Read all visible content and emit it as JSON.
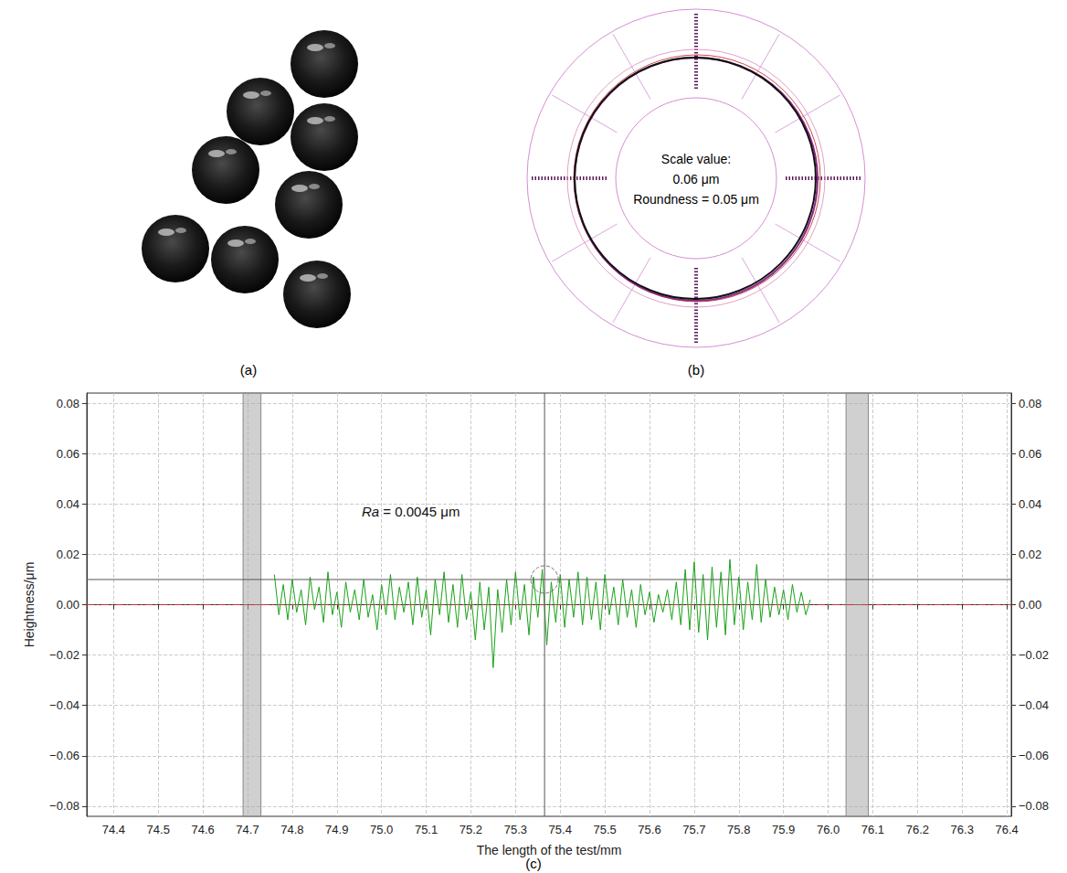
{
  "panels": {
    "a": {
      "label": "(a)"
    },
    "b": {
      "label": "(b)",
      "lines": [
        "Scale value:",
        "0.06 μm",
        "Roundness = 0.05 μm"
      ]
    }
  },
  "chart_data": {
    "type": "line",
    "label": "(c)",
    "annotation": "Ra = 0.0045 μm",
    "x_label": "The length of the test/mm",
    "y_label": "Heightness/μm",
    "color": "#19a319",
    "grid": true,
    "xlim": [
      74.34,
      76.41
    ],
    "xticks": [
      74.4,
      74.5,
      74.6,
      74.7,
      74.8,
      74.9,
      {
        "value": 75,
        "label": "75.0"
      },
      75.1,
      75.2,
      75.3,
      75.4,
      75.5,
      75.6,
      75.7,
      75.8,
      75.9,
      {
        "value": 76,
        "label": "76.0"
      },
      76.1,
      76.2,
      76.3,
      76.4
    ],
    "ylim": [
      -0.084,
      0.084
    ],
    "yticks": [
      {
        "value": -0.08,
        "label": "−0.08"
      },
      {
        "value": -0.06,
        "label": "−0.06"
      },
      {
        "value": -0.04,
        "label": "−0.04"
      },
      {
        "value": -0.02,
        "label": "−0.02"
      },
      {
        "value": 0,
        "label": "0.00"
      },
      0.02,
      0.04,
      0.06,
      0.08
    ],
    "y2lim": [
      -0.084,
      0.084
    ],
    "y2ticks": [
      {
        "value": -0.08,
        "label": "−0.08"
      },
      {
        "value": -0.06,
        "label": "−0.06"
      },
      {
        "value": -0.04,
        "label": "−0.04"
      },
      {
        "value": -0.02,
        "label": "−0.02"
      },
      {
        "value": 0,
        "label": "0.00"
      },
      0.02,
      0.04,
      0.06,
      0.08
    ],
    "reference_line": 0,
    "cursor": {
      "x": 75.365,
      "y": 0.01
    },
    "hatched_ranges": [
      [
        74.69,
        74.73
      ],
      [
        76.04,
        76.09
      ]
    ],
    "x": [
      74.76,
      74.77,
      74.78,
      74.79,
      74.8,
      74.81,
      74.82,
      74.83,
      74.84,
      74.85,
      74.86,
      74.87,
      74.88,
      74.89,
      74.9,
      74.91,
      74.92,
      74.93,
      74.94,
      74.95,
      74.96,
      74.97,
      74.98,
      74.99,
      75,
      75.01,
      75.02,
      75.03,
      75.04,
      75.05,
      75.06,
      75.07,
      75.08,
      75.09,
      75.1,
      75.11,
      75.12,
      75.13,
      75.14,
      75.15,
      75.16,
      75.17,
      75.18,
      75.19,
      75.2,
      75.21,
      75.22,
      75.23,
      75.24,
      75.25,
      75.26,
      75.27,
      75.28,
      75.29,
      75.3,
      75.31,
      75.32,
      75.33,
      75.34,
      75.35,
      75.36,
      75.37,
      75.38,
      75.39,
      75.4,
      75.41,
      75.42,
      75.43,
      75.44,
      75.45,
      75.46,
      75.47,
      75.48,
      75.49,
      75.5,
      75.51,
      75.52,
      75.53,
      75.54,
      75.55,
      75.56,
      75.57,
      75.58,
      75.59,
      75.6,
      75.61,
      75.62,
      75.63,
      75.64,
      75.65,
      75.66,
      75.67,
      75.68,
      75.69,
      75.7,
      75.71,
      75.72,
      75.73,
      75.74,
      75.75,
      75.76,
      75.77,
      75.78,
      75.79,
      75.8,
      75.81,
      75.82,
      75.83,
      75.84,
      75.85,
      75.86,
      75.87,
      75.88,
      75.89,
      75.9,
      75.91,
      75.92,
      75.93,
      75.94,
      75.95,
      75.96
    ],
    "values": [
      0.012,
      -0.004,
      0.008,
      -0.006,
      0.01,
      -0.003,
      0.006,
      -0.008,
      0.011,
      -0.002,
      0.007,
      -0.007,
      0.013,
      -0.004,
      0.005,
      -0.009,
      0.009,
      -0.003,
      0.006,
      -0.006,
      0.01,
      -0.005,
      0.004,
      -0.01,
      0.008,
      -0.004,
      0.012,
      -0.006,
      0.007,
      -0.003,
      0.009,
      -0.008,
      0.011,
      -0.005,
      0.006,
      -0.012,
      0.01,
      -0.004,
      0.013,
      -0.007,
      0.008,
      -0.009,
      0.012,
      -0.006,
      0.005,
      -0.014,
      0.009,
      -0.01,
      0.007,
      -0.025,
      0.006,
      -0.011,
      0.01,
      -0.008,
      0.013,
      -0.006,
      0.008,
      -0.012,
      0.011,
      -0.005,
      0.014,
      -0.016,
      0.009,
      -0.007,
      0.012,
      -0.009,
      0.01,
      -0.005,
      0.013,
      -0.008,
      0.011,
      -0.006,
      0.009,
      -0.01,
      0.012,
      -0.004,
      0.007,
      -0.008,
      0.01,
      -0.005,
      0.006,
      -0.009,
      0.008,
      -0.004,
      0.005,
      -0.007,
      0.004,
      -0.003,
      0.006,
      -0.006,
      0.009,
      -0.008,
      0.014,
      -0.01,
      0.017,
      -0.011,
      0.012,
      -0.014,
      0.015,
      -0.009,
      0.013,
      -0.012,
      0.018,
      -0.008,
      0.011,
      -0.01,
      0.009,
      -0.006,
      0.016,
      -0.007,
      0.01,
      -0.005,
      0.007,
      -0.004,
      0.006,
      -0.006,
      0.008,
      -0.003,
      0.005,
      -0.004,
      0.002
    ]
  }
}
